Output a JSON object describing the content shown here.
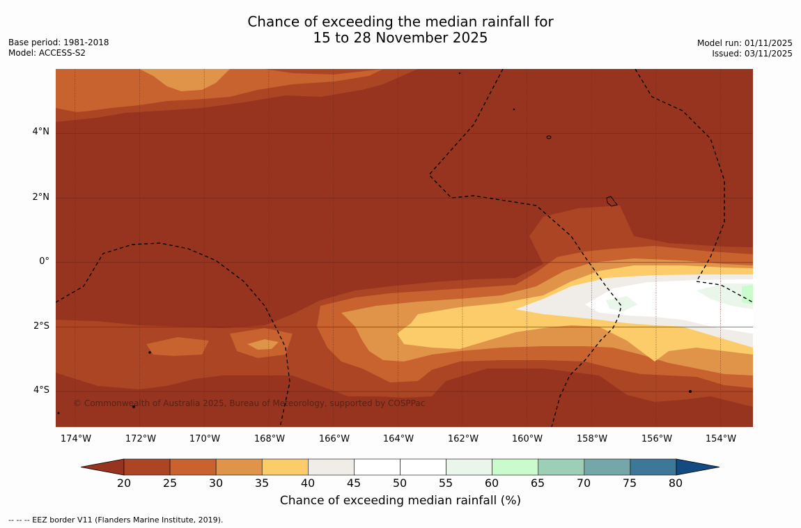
{
  "title": {
    "line1": "Chance of exceeding the median rainfall for",
    "line2": "15 to 28 November 2025"
  },
  "meta_left": {
    "base_period": "Base period: 1981-2018",
    "model": "Model: ACCESS-S2"
  },
  "meta_right": {
    "model_run": "Model run: 01/11/2025",
    "issued": "Issued: 03/11/2025"
  },
  "map": {
    "copyright": "© Commonwealth of Australia 2025, Bureau of Meteorology, supported by COSPPac",
    "y_ticks": [
      "4°N",
      "2°N",
      "0°",
      "2°S",
      "4°S"
    ],
    "x_ticks": [
      "174°W",
      "172°W",
      "170°W",
      "168°W",
      "166°W",
      "164°W",
      "162°W",
      "160°W",
      "158°W",
      "156°W",
      "154°W"
    ],
    "lat_range": [
      -5.1,
      6.0
    ],
    "lon_range": [
      -174.6,
      -153.0
    ],
    "lat_ticks": [
      4,
      2,
      0,
      -2,
      -4
    ],
    "lon_ticks": [
      -174,
      -172,
      -170,
      -168,
      -166,
      -164,
      -162,
      -160,
      -158,
      -156,
      -154
    ]
  },
  "colorbar": {
    "levels": [
      20,
      25,
      30,
      35,
      40,
      45,
      50,
      55,
      60,
      65,
      70,
      75,
      80
    ],
    "tick_labels": [
      "20",
      "25",
      "30",
      "35",
      "40",
      "45",
      "50",
      "55",
      "60",
      "65",
      "70",
      "75",
      "80"
    ],
    "colors": [
      "#ab4524",
      "#c8622f",
      "#e0944a",
      "#fccb6a",
      "#f0ece7",
      "#ffffff",
      "#ffffff",
      "#eaf6ea",
      "#c9fbcc",
      "#9ccfb6",
      "#73a7a8",
      "#3e7898"
    ],
    "under_color": "#973420",
    "over_color": "#134a82",
    "label": "Chance of exceeding median rainfall (%)"
  },
  "footer": "--  --  -- EEZ border V11 (Flanders Marine Institute, 2019)."
}
